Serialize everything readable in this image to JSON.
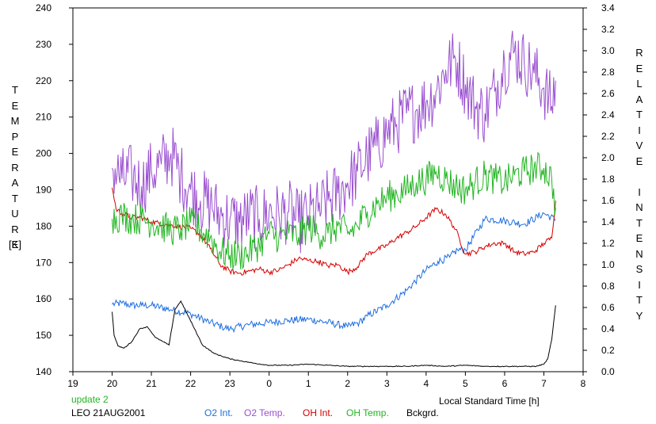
{
  "chart_data": {
    "type": "line",
    "left_axis_title": "TEMPERATURE",
    "left_axis_unit": "[K]",
    "right_axis_title": "RELATIVE INTENSITY",
    "xlabel": "Local Standard Time [h]",
    "note": "update 2",
    "site_date": "LEO 21AUG2001",
    "ylim_left": [
      140,
      240
    ],
    "ylim_right": [
      0,
      3.4
    ],
    "x_ticks": [
      {
        "value": 19,
        "label": "19"
      },
      {
        "value": 20,
        "label": "20"
      },
      {
        "value": 21,
        "label": "21"
      },
      {
        "value": 22,
        "label": "22"
      },
      {
        "value": 23,
        "label": "23"
      },
      {
        "value": 24,
        "label": "0"
      },
      {
        "value": 25,
        "label": "1"
      },
      {
        "value": 26,
        "label": "2"
      },
      {
        "value": 27,
        "label": "3"
      },
      {
        "value": 28,
        "label": "4"
      },
      {
        "value": 29,
        "label": "5"
      },
      {
        "value": 30,
        "label": "6"
      },
      {
        "value": 31,
        "label": "7"
      },
      {
        "value": 32,
        "label": "8"
      }
    ],
    "y_ticks_left": [
      "140",
      "150",
      "160",
      "170",
      "180",
      "190",
      "200",
      "210",
      "220",
      "230",
      "240"
    ],
    "y_ticks_right": [
      "0.0",
      "0.2",
      "0.4",
      "0.6",
      "0.8",
      "1.0",
      "1.2",
      "1.4",
      "1.6",
      "1.8",
      "2.0",
      "2.2",
      "2.4",
      "2.6",
      "2.8",
      "3.0",
      "3.2",
      "3.4"
    ],
    "series": [
      {
        "name": "O2 Int.",
        "color": "#1e6ee0",
        "axis": "right",
        "x": [
          20.0,
          20.25,
          20.5,
          20.75,
          21.0,
          21.5,
          22.0,
          22.5,
          22.8,
          23.0,
          23.5,
          24.0,
          24.5,
          25.0,
          25.5,
          26.0,
          26.3,
          26.5,
          27.0,
          27.5,
          28.0,
          28.3,
          28.6,
          28.8,
          29.0,
          29.5,
          30.0,
          30.5,
          31.0,
          31.3
        ],
        "values": [
          0.63,
          0.64,
          0.62,
          0.62,
          0.62,
          0.58,
          0.54,
          0.46,
          0.42,
          0.4,
          0.44,
          0.46,
          0.48,
          0.49,
          0.46,
          0.42,
          0.46,
          0.52,
          0.62,
          0.76,
          0.95,
          1.03,
          1.07,
          1.14,
          1.14,
          1.43,
          1.41,
          1.38,
          1.48,
          1.42
        ]
      },
      {
        "name": "O2 Temp.",
        "color": "#9a4fd0",
        "axis": "left",
        "x": [
          20.0,
          20.25,
          20.5,
          20.75,
          21.0,
          21.25,
          21.5,
          21.75,
          22.0,
          22.25,
          22.5,
          22.75,
          23.0,
          23.25,
          23.5,
          23.75,
          24.0,
          24.25,
          24.5,
          24.75,
          25.0,
          25.25,
          25.5,
          25.75,
          26.0,
          26.25,
          26.5,
          26.75,
          27.0,
          27.25,
          27.5,
          27.75,
          28.0,
          28.25,
          28.5,
          28.75,
          29.0,
          29.25,
          29.5,
          29.75,
          30.0,
          30.25,
          30.5,
          30.75,
          31.0,
          31.2,
          31.3
        ],
        "values": [
          196,
          193,
          194,
          191,
          195,
          197,
          200,
          194,
          190,
          187,
          186,
          183,
          182,
          181,
          183,
          182,
          184,
          183,
          184,
          181,
          183,
          184,
          187,
          189,
          192,
          195,
          199,
          202,
          206,
          208,
          211,
          212,
          214,
          217,
          223,
          226,
          219,
          213,
          211,
          217,
          225,
          228,
          225,
          222,
          218,
          213,
          220
        ]
      },
      {
        "name": "OH Int.",
        "color": "#d40000",
        "axis": "right",
        "x": [
          20.0,
          20.1,
          20.25,
          20.5,
          20.75,
          21.0,
          21.5,
          22.0,
          22.25,
          22.5,
          22.75,
          23.0,
          23.25,
          23.5,
          23.75,
          24.0,
          24.25,
          24.5,
          24.75,
          25.0,
          25.25,
          25.5,
          25.75,
          26.0,
          26.25,
          26.5,
          26.75,
          27.0,
          27.25,
          27.5,
          27.75,
          28.0,
          28.25,
          28.5,
          28.75,
          29.0,
          29.25,
          29.5,
          29.75,
          30.0,
          30.25,
          30.5,
          30.75,
          31.0,
          31.2,
          31.3
        ],
        "values": [
          1.72,
          1.52,
          1.48,
          1.44,
          1.44,
          1.4,
          1.37,
          1.34,
          1.28,
          1.15,
          1.0,
          0.94,
          0.92,
          0.94,
          0.96,
          0.93,
          0.95,
          1.0,
          1.06,
          1.04,
          1.03,
          0.99,
          1.0,
          0.93,
          0.98,
          1.1,
          1.14,
          1.18,
          1.25,
          1.3,
          1.36,
          1.44,
          1.52,
          1.47,
          1.33,
          1.1,
          1.12,
          1.17,
          1.2,
          1.2,
          1.12,
          1.1,
          1.12,
          1.2,
          1.25,
          1.6
        ]
      },
      {
        "name": "OH Temp.",
        "color": "#22b522",
        "axis": "left",
        "x": [
          20.0,
          20.25,
          20.5,
          20.75,
          21.0,
          21.25,
          21.5,
          21.75,
          22.0,
          22.25,
          22.5,
          22.75,
          23.0,
          23.25,
          23.5,
          23.75,
          24.0,
          24.25,
          24.5,
          24.75,
          25.0,
          25.25,
          25.5,
          25.75,
          26.0,
          26.25,
          26.5,
          26.75,
          27.0,
          27.25,
          27.5,
          27.75,
          28.0,
          28.25,
          28.5,
          28.75,
          29.0,
          29.25,
          29.5,
          29.75,
          30.0,
          30.25,
          30.5,
          30.75,
          31.0,
          31.2,
          31.3
        ],
        "values": [
          182,
          183,
          182,
          182,
          181,
          180,
          179,
          179,
          181,
          179,
          177,
          173,
          172,
          172,
          173,
          175,
          178,
          177,
          178,
          177,
          180,
          178,
          178,
          180,
          178,
          180,
          184,
          186,
          188,
          189,
          190,
          192,
          193,
          195,
          193,
          191,
          190,
          192,
          194,
          193,
          192,
          194,
          195,
          196,
          196,
          193,
          185
        ]
      },
      {
        "name": "Bckgrd.",
        "color": "#000000",
        "axis": "right",
        "x": [
          20.0,
          20.05,
          20.15,
          20.3,
          20.5,
          20.7,
          20.9,
          21.1,
          21.3,
          21.45,
          21.6,
          21.75,
          21.9,
          22.1,
          22.3,
          22.6,
          23.0,
          23.3,
          23.6,
          24.0,
          24.5,
          25.0,
          25.5,
          26.0,
          26.5,
          27.0,
          27.5,
          28.0,
          28.5,
          29.0,
          29.5,
          30.0,
          30.5,
          30.8,
          31.0,
          31.1,
          31.2,
          31.3
        ],
        "values": [
          0.56,
          0.34,
          0.24,
          0.22,
          0.28,
          0.4,
          0.42,
          0.32,
          0.28,
          0.25,
          0.58,
          0.66,
          0.55,
          0.4,
          0.25,
          0.17,
          0.12,
          0.1,
          0.08,
          0.06,
          0.06,
          0.07,
          0.06,
          0.05,
          0.05,
          0.05,
          0.05,
          0.06,
          0.05,
          0.06,
          0.05,
          0.05,
          0.05,
          0.05,
          0.07,
          0.12,
          0.3,
          0.62
        ]
      }
    ]
  }
}
